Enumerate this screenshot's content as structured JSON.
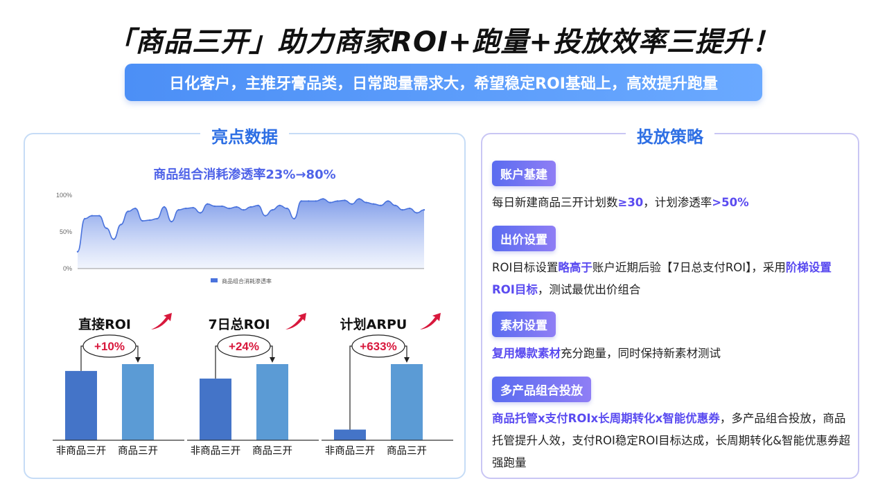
{
  "title": "「商品三开」助力商家ROI+跑量+投放效率三提升！",
  "subtitle": "日化客户，主推牙膏品类，日常跑量需求大，希望稳定ROI基础上，高效提升跑量",
  "left_panel": {
    "title": "亮点数据",
    "chart_title": "商品组合消耗渗透率23%→80%"
  },
  "right_panel": {
    "title": "投放策略",
    "sections": [
      {
        "tag": "账户基建",
        "p1": "每日新建商品三开计划数",
        "h1": "≥30",
        "p2": "，计划渗透率",
        "h2": ">50%"
      },
      {
        "tag": "出价设置",
        "p1": "ROI目标设置",
        "h1": "略高于",
        "p2": "账户近期后验【7日总支付ROI】，采用",
        "h2": "阶梯设置ROI目标",
        "p3": "，测试最优出价组合"
      },
      {
        "tag": "素材设置",
        "h1": "复用爆款素材",
        "p1": "充分跑量，同时保持新素材测试"
      },
      {
        "tag": "多产品组合投放",
        "h1": "商品托管x支付ROIx长周期转化x智能优惠券",
        "p1": "，多产品组合投放，商品托管提升人效，支付ROI稳定ROI目标达成，长周期转化&智能优惠券超强跑量"
      }
    ]
  },
  "chart_data": [
    {
      "type": "area",
      "title": "商品组合消耗渗透率23%→80%",
      "xlabel": "",
      "ylabel": "",
      "ylim": [
        0,
        100
      ],
      "yticks": [
        "0%",
        "50%",
        "100%"
      ],
      "grid": false,
      "legend_position": "bottom",
      "series": [
        {
          "name": "商品组合消耗渗透率",
          "color": "#4a73dd",
          "values": [
            23,
            68,
            72,
            72,
            55,
            40,
            60,
            78,
            82,
            65,
            66,
            68,
            84,
            64,
            80,
            82,
            83,
            76,
            88,
            85,
            85,
            82,
            84,
            80,
            84,
            86,
            72,
            80,
            86,
            82,
            68,
            92,
            92,
            92,
            95,
            90,
            92,
            93,
            88,
            95,
            90,
            88,
            86,
            92,
            86,
            80,
            82,
            76,
            80
          ]
        }
      ]
    },
    {
      "type": "bar",
      "title": "直接ROI",
      "categories": [
        "非商品三开",
        "商品三开"
      ],
      "values": [
        91,
        100
      ],
      "annotation": "+10%",
      "colors": [
        "#4474c8",
        "#5b9bd5"
      ]
    },
    {
      "type": "bar",
      "title": "7日总ROI",
      "categories": [
        "非商品三开",
        "商品三开"
      ],
      "values": [
        81,
        100
      ],
      "annotation": "+24%",
      "colors": [
        "#4474c8",
        "#5b9bd5"
      ]
    },
    {
      "type": "bar",
      "title": "计划ARPU",
      "categories": [
        "非商品三开",
        "商品三开"
      ],
      "values": [
        14,
        100
      ],
      "annotation": "+633%",
      "colors": [
        "#4474c8",
        "#5b9bd5"
      ]
    }
  ]
}
